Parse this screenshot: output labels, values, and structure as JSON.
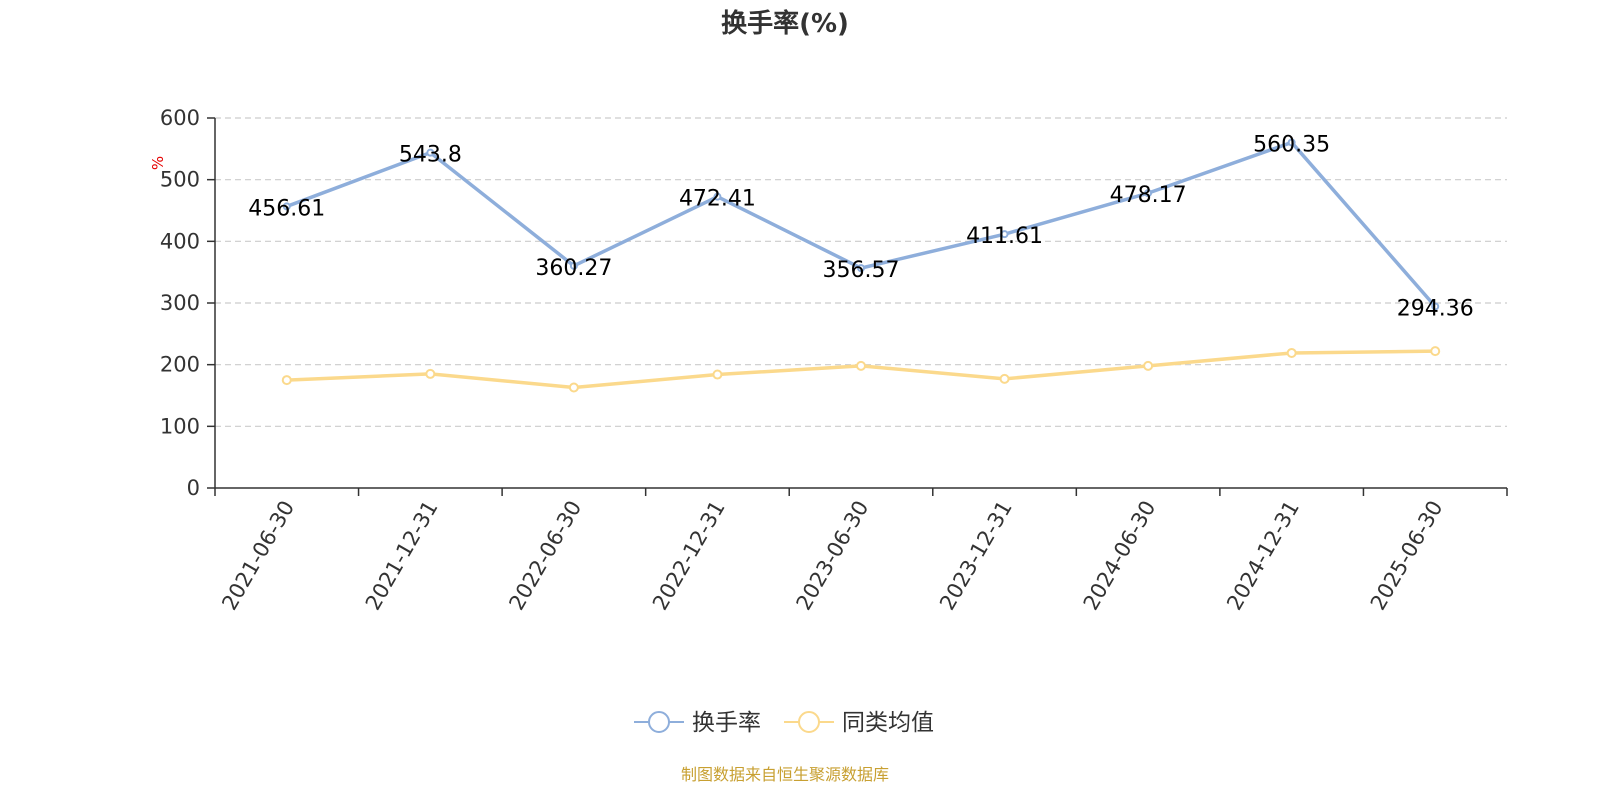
{
  "chart_data": {
    "type": "line",
    "title": "换手率(%)",
    "ylabel": "%",
    "ylim": [
      0,
      600
    ],
    "yticks": [
      "0",
      "100",
      "200",
      "300",
      "400",
      "500",
      "600"
    ],
    "categories": [
      "2021-06-30",
      "2021-12-31",
      "2022-06-30",
      "2022-12-31",
      "2023-06-30",
      "2023-12-31",
      "2024-06-30",
      "2024-12-31",
      "2025-06-30"
    ],
    "grid": true,
    "legend_position": "bottom-center",
    "series": [
      {
        "name": "换手率",
        "color": "#8eaedb",
        "values": [
          456.61,
          543.8,
          360.27,
          472.41,
          356.57,
          411.61,
          478.17,
          560.35,
          294.36
        ],
        "data_labels": [
          "456.61",
          "543.8",
          "360.27",
          "472.41",
          "356.57",
          "411.61",
          "478.17",
          "560.35",
          "294.36"
        ]
      },
      {
        "name": "同类均值",
        "color": "#fbd98c",
        "values": [
          175,
          185,
          163,
          184,
          198,
          177,
          198,
          219,
          222
        ]
      }
    ],
    "source": "制图数据来自恒生聚源数据库"
  }
}
